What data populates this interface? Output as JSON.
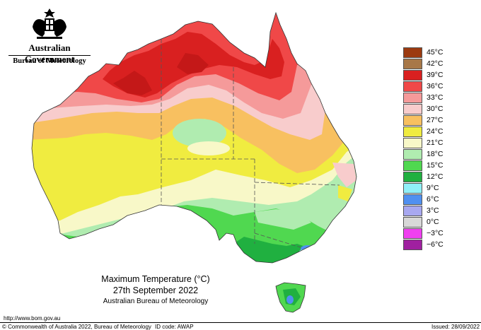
{
  "header": {
    "government": "Australian Government",
    "bureau": "Bureau of Meteorology"
  },
  "legend": {
    "items": [
      {
        "label": "45°C",
        "color": "#9c3a10"
      },
      {
        "label": "42°C",
        "color": "#a87848"
      },
      {
        "label": "39°C",
        "color": "#d92020"
      },
      {
        "label": "36°C",
        "color": "#f04848"
      },
      {
        "label": "33°C",
        "color": "#f59a9a"
      },
      {
        "label": "30°C",
        "color": "#f8cccc"
      },
      {
        "label": "27°C",
        "color": "#f8c060"
      },
      {
        "label": "24°C",
        "color": "#f0ec40"
      },
      {
        "label": "21°C",
        "color": "#f8f8c8"
      },
      {
        "label": "18°C",
        "color": "#b0ecb0"
      },
      {
        "label": "15°C",
        "color": "#50d850"
      },
      {
        "label": "12°C",
        "color": "#20b040"
      },
      {
        "label": "9°C",
        "color": "#90f0f8"
      },
      {
        "label": "6°C",
        "color": "#5090f0"
      },
      {
        "label": "3°C",
        "color": "#a8a8f0"
      },
      {
        "label": "0°C",
        "color": "#d8d8d8"
      },
      {
        "label": "−3°C",
        "color": "#f040f0"
      },
      {
        "label": "−6°C",
        "color": "#a020a0"
      }
    ]
  },
  "titles": {
    "main": "Maximum Temperature (°C)",
    "date": "27th September 2022",
    "org": "Australian Bureau of Meteorology"
  },
  "footer": {
    "url": "http://www.bom.gov.au",
    "copyright": "© Commonwealth of Australia 2022, Bureau of Meteorology",
    "id_code": "ID code: AWAP",
    "issued": "Issued: 28/09/2022"
  }
}
